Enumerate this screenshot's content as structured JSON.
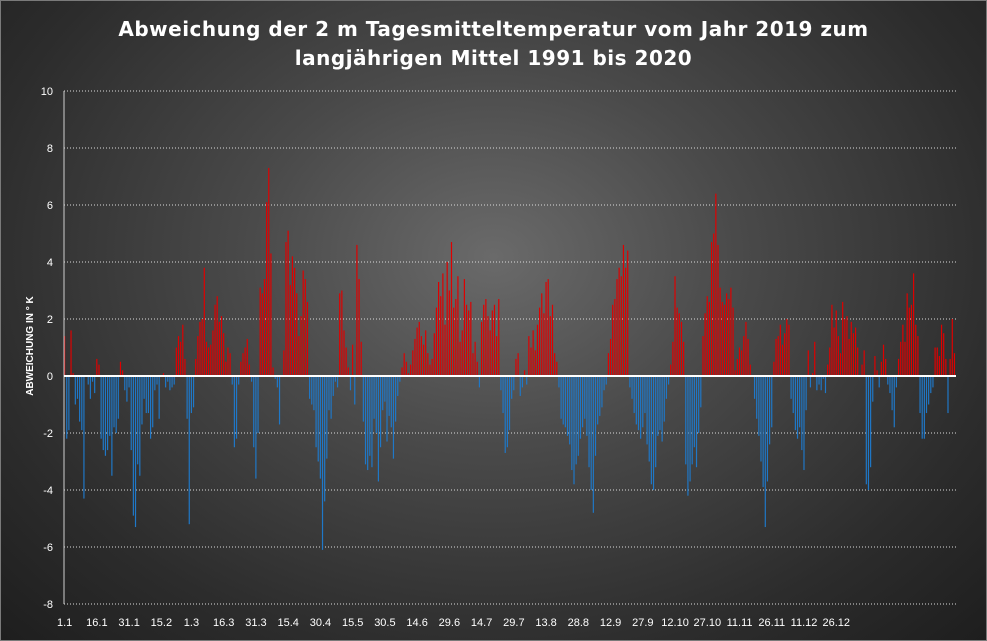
{
  "chart_data": {
    "type": "bar",
    "title": "Abweichung der 2 m Tagesmitteltemperatur  vom Jahr 2019 zum langjährigen Mittel 1991 bis 2020",
    "title_lines": [
      "Abweichung der 2 m Tagesmitteltemperatur  vom Jahr 2019 zum",
      "langjährigen Mittel 1991 bis 2020"
    ],
    "xlabel": "",
    "ylabel": "ABWEICHUNG IN ° K",
    "ylim": [
      -8,
      10
    ],
    "yticks": [
      -8,
      -6,
      -4,
      -2,
      0,
      2,
      4,
      6,
      8,
      10
    ],
    "grid": true,
    "legend": "none",
    "colors": {
      "positive": "#e00000",
      "negative": "#1f78c8",
      "zero_line": "#ffffff"
    },
    "xtick_labels": [
      "1.1",
      "16.1",
      "31.1",
      "15.2",
      "1.3",
      "16.3",
      "31.3",
      "15.4",
      "30.4",
      "15.5",
      "30.5",
      "14.6",
      "29.6",
      "14.7",
      "29.7",
      "13.8",
      "28.8",
      "12.9",
      "27.9",
      "12.10",
      "27.10",
      "11.11",
      "26.11",
      "11.12",
      "26.12"
    ],
    "xtick_days": [
      1,
      16,
      31,
      46,
      60,
      75,
      90,
      105,
      120,
      135,
      150,
      165,
      180,
      195,
      210,
      225,
      240,
      255,
      270,
      285,
      300,
      315,
      330,
      345,
      360
    ],
    "values": [
      1.4,
      -2.2,
      -1.9,
      1.6,
      0.1,
      -1.0,
      -0.8,
      -1.6,
      -1.9,
      -4.3,
      0.0,
      -0.3,
      -0.8,
      -0.2,
      -0.6,
      0.6,
      0.4,
      -2.2,
      -2.6,
      -2.8,
      -2.6,
      -2.1,
      -3.5,
      -1.8,
      -2.0,
      -1.5,
      0.5,
      0.2,
      -0.5,
      -0.9,
      -0.4,
      -2.6,
      -4.9,
      -5.3,
      -3.1,
      -3.5,
      -1.7,
      -0.8,
      -1.3,
      -1.3,
      -2.2,
      -1.8,
      -0.5,
      -0.3,
      -1.5,
      0.0,
      0.1,
      -0.4,
      -0.2,
      -0.5,
      -0.4,
      -0.3,
      1.0,
      1.4,
      1.2,
      1.8,
      0.6,
      -1.5,
      -5.2,
      -1.3,
      -1.1,
      0.6,
      1.4,
      1.9,
      2.0,
      3.8,
      1.2,
      1.0,
      1.1,
      1.6,
      2.5,
      2.8,
      1.9,
      2.1,
      1.5,
      0.5,
      1.0,
      0.8,
      -0.3,
      -2.5,
      -2.2,
      -0.3,
      0.5,
      0.8,
      1.0,
      1.3,
      0.4,
      -0.2,
      -2.5,
      -3.6,
      -2.0,
      3.1,
      2.9,
      3.4,
      6.1,
      7.3,
      4.3,
      0.3,
      -0.1,
      -0.4,
      -1.7,
      0.0,
      0.9,
      4.7,
      5.1,
      3.2,
      4.2,
      3.8,
      2.9,
      1.4,
      2.1,
      3.7,
      3.4,
      2.6,
      -0.8,
      -1.0,
      -1.2,
      -2.5,
      -3.0,
      -3.6,
      -6.1,
      -4.4,
      -2.9,
      -1.2,
      -1.5,
      -0.7,
      -0.2,
      -0.4,
      2.9,
      3.0,
      1.6,
      1.0,
      0.3,
      -0.5,
      1.1,
      -1.0,
      4.6,
      3.4,
      1.2,
      -1.6,
      -3.1,
      -3.3,
      -2.8,
      -3.2,
      -1.5,
      -2.0,
      -3.7,
      -2.5,
      -1.2,
      -0.9,
      -2.3,
      -1.4,
      -1.8,
      -2.9,
      -1.6,
      -0.7,
      -0.2,
      0.3,
      0.8,
      0.5,
      0.1,
      0.4,
      0.9,
      1.3,
      1.7,
      1.9,
      1.4,
      1.1,
      1.6,
      0.8,
      0.4,
      0.6,
      1.5,
      2.4,
      3.3,
      2.8,
      3.6,
      1.8,
      4.0,
      3.0,
      4.7,
      2.4,
      2.7,
      3.5,
      1.2,
      1.6,
      3.4,
      2.5,
      2.3,
      2.6,
      0.8,
      1.2,
      0.5,
      -0.4,
      1.9,
      2.5,
      2.7,
      2.1,
      1.6,
      2.3,
      2.5,
      1.4,
      2.7,
      -0.5,
      -1.3,
      -2.7,
      -2.5,
      -1.9,
      -0.8,
      -0.5,
      0.6,
      0.8,
      -0.7,
      -0.4,
      0.2,
      -0.3,
      1.4,
      1.0,
      1.6,
      0.9,
      1.8,
      2.4,
      2.9,
      2.2,
      3.3,
      3.4,
      2.1,
      2.5,
      0.8,
      0.5,
      -0.4,
      -1.5,
      -1.7,
      -1.8,
      -2.1,
      -2.4,
      -3.3,
      -3.8,
      -3.1,
      -2.8,
      -2.2,
      -1.8,
      -1.5,
      -2.1,
      -3.2,
      -4.0,
      -4.8,
      -2.8,
      -1.7,
      -1.4,
      -1.1,
      -0.5,
      -0.3,
      0.8,
      1.3,
      2.5,
      2.7,
      3.4,
      3.8,
      3.5,
      4.6,
      3.8,
      4.4,
      -0.4,
      -0.8,
      -1.3,
      -1.7,
      -1.9,
      -2.2,
      -1.8,
      -1.3,
      -2.4,
      -3.0,
      -3.8,
      -4.0,
      -3.2,
      -2.1,
      -1.9,
      -2.3,
      -1.6,
      -0.8,
      -0.3,
      0.4,
      1.2,
      3.5,
      2.4,
      2.2,
      1.9,
      1.2,
      -3.1,
      -4.2,
      -3.7,
      -3.1,
      -2.5,
      -3.2,
      -2.0,
      -1.1,
      1.4,
      2.2,
      2.8,
      2.6,
      4.7,
      5.0,
      6.4,
      4.6,
      3.1,
      2.6,
      2.5,
      2.9,
      2.7,
      3.1,
      2.4,
      0.2,
      0.6,
      1.0,
      0.9,
      1.4,
      1.9,
      1.3,
      0.4,
      0.0,
      -0.8,
      -1.5,
      -2.1,
      -3.0,
      -3.9,
      -5.3,
      -3.7,
      -2.4,
      -1.8,
      0.5,
      1.3,
      1.4,
      1.8,
      1.1,
      1.5,
      2.0,
      1.8,
      -0.8,
      -1.3,
      -1.9,
      -2.2,
      -1.8,
      -2.6,
      -3.3,
      -1.2,
      0.9,
      -0.4,
      0.1,
      1.2,
      -0.5,
      -0.3,
      -0.5,
      -0.1,
      -0.6,
      0.4,
      1.0,
      2.5,
      1.7,
      2.3,
      1.4,
      0.8,
      2.6,
      2.0,
      2.1,
      1.3,
      1.9,
      1.5,
      1.7,
      1.0,
      0.0,
      0.4,
      0.9,
      -3.8,
      -4.0,
      -3.2,
      -0.9,
      0.7,
      0.2,
      -0.4,
      0.5,
      1.1,
      0.6,
      -0.3,
      -0.6,
      -1.2,
      -1.8,
      -0.4,
      0.6,
      1.2,
      1.8,
      1.2,
      2.9,
      2.4,
      2.5,
      3.6,
      1.8,
      1.4,
      -1.3,
      -2.2,
      -2.2,
      -1.3,
      -1.0,
      -0.6,
      -0.4,
      1.0,
      1.0,
      0.7,
      1.8,
      1.5,
      0.6,
      -1.3,
      0.6,
      2.0,
      0.8
    ]
  }
}
